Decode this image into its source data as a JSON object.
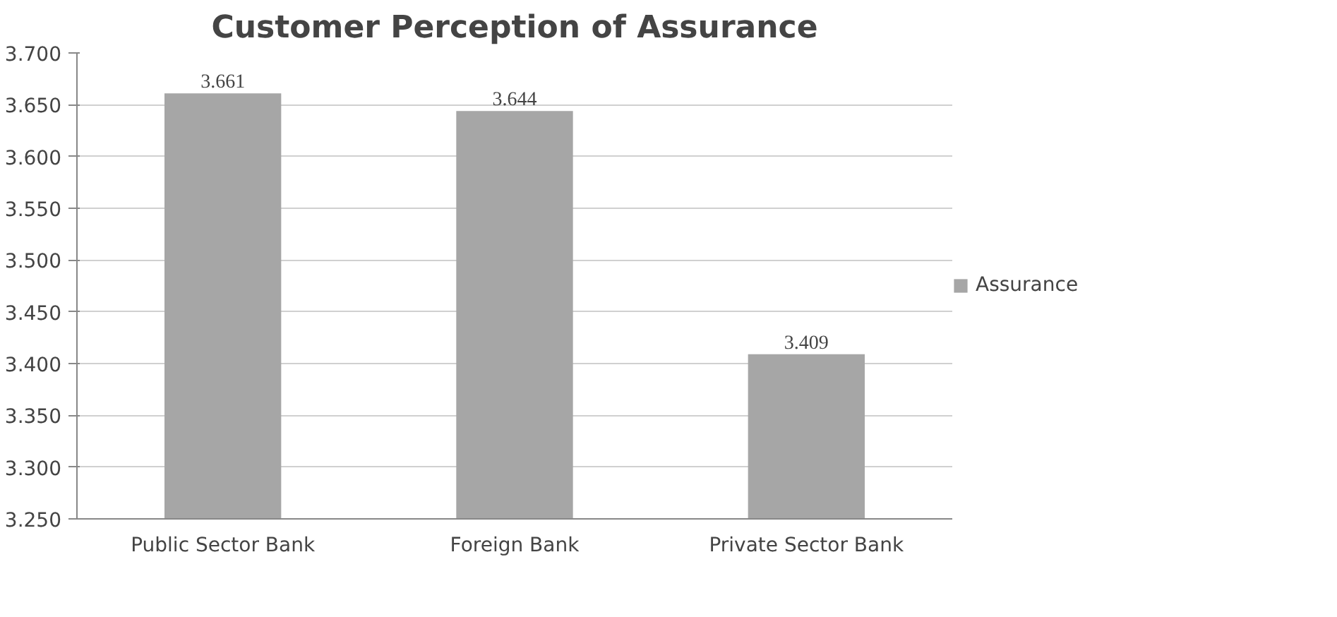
{
  "chart_data": {
    "type": "bar",
    "title": "Customer Perception of Assurance",
    "categories": [
      "Public Sector Bank",
      "Foreign Bank",
      "Private Sector Bank"
    ],
    "series": [
      {
        "name": "Assurance",
        "color": "#a6a6a6",
        "values": [
          3.661,
          3.644,
          3.409
        ]
      }
    ],
    "ylim": [
      3.25,
      3.7
    ],
    "yticks": [
      {
        "value": 3.25,
        "label": "3.250"
      },
      {
        "value": 3.3,
        "label": "3.300"
      },
      {
        "value": 3.35,
        "label": "3.350"
      },
      {
        "value": 3.4,
        "label": "3.400"
      },
      {
        "value": 3.45,
        "label": "3.450"
      },
      {
        "value": 3.5,
        "label": "3.500"
      },
      {
        "value": 3.55,
        "label": "3.550"
      },
      {
        "value": 3.6,
        "label": "3.600"
      },
      {
        "value": 3.65,
        "label": "3.650"
      },
      {
        "value": 3.7,
        "label": "3.700"
      }
    ],
    "grid": "y",
    "legend": "right",
    "data_labels": true
  }
}
